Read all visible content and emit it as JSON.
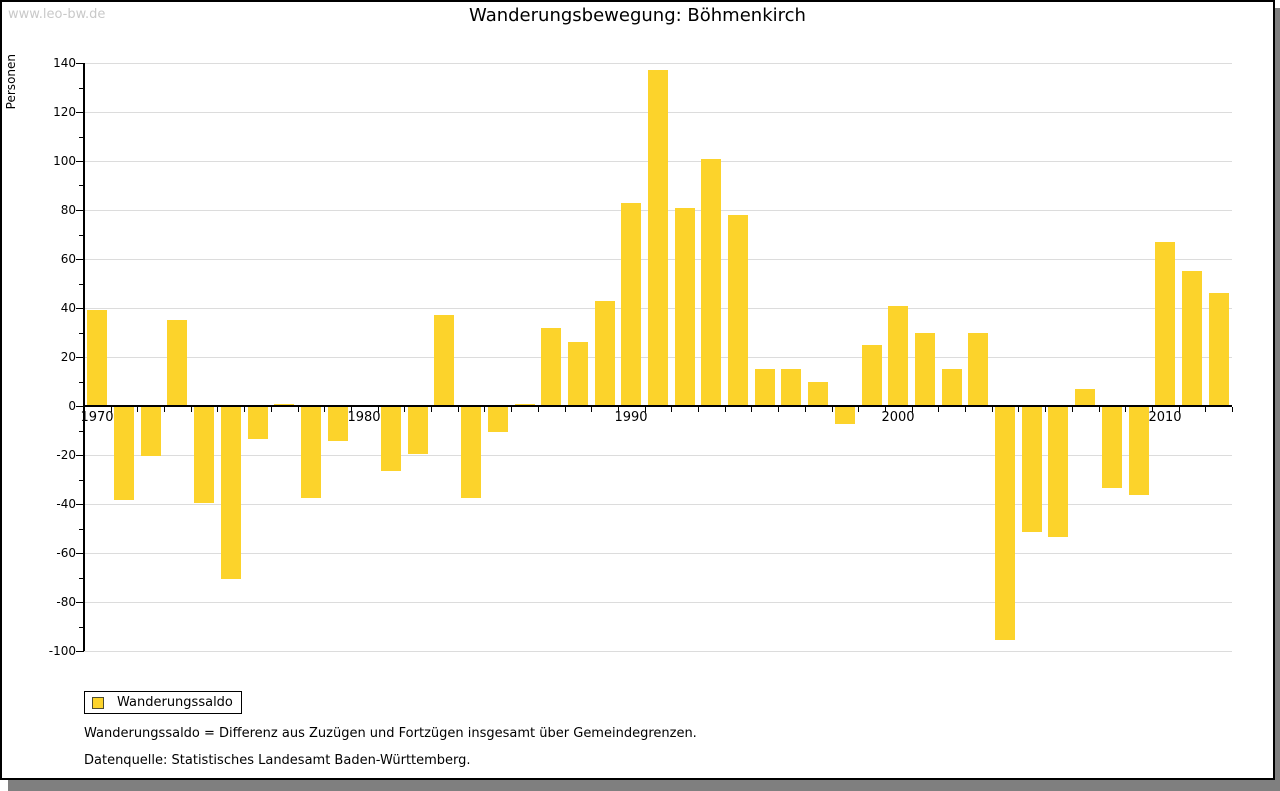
{
  "page": {
    "watermark": "www.leo-bw.de",
    "title": "Wanderungsbewegung: Böhmenkirch"
  },
  "legend": {
    "label": "Wanderungssaldo"
  },
  "footnotes": {
    "definition": "Wanderungssaldo = Differenz aus Zuzügen und Fortzügen insgesamt über Gemeindegrenzen.",
    "source": "Datenquelle: Statistisches Landesamt Baden-Württemberg."
  },
  "colors": {
    "bar": "#fcd32b",
    "gridline": "#dcdcdc",
    "axis": "#000000",
    "watermark": "#c9c9c9",
    "shadow": "#7f7f7f"
  },
  "chart_data": {
    "type": "bar",
    "title": "Wanderungsbewegung: Böhmenkirch",
    "ylabel": "Personen",
    "series_name": "Wanderungssaldo",
    "ylim": [
      -100,
      140
    ],
    "ytick_step": 20,
    "yminor_step": 10,
    "grid": "horizontal",
    "legend_position": "bottom-left",
    "xtick_labels": [
      "1970",
      "1980",
      "1990",
      "2000",
      "2010"
    ],
    "x": [
      1970,
      1971,
      1972,
      1973,
      1974,
      1975,
      1976,
      1977,
      1978,
      1979,
      1980,
      1981,
      1982,
      1983,
      1984,
      1985,
      1986,
      1987,
      1988,
      1989,
      1990,
      1991,
      1992,
      1993,
      1994,
      1995,
      1996,
      1997,
      1998,
      1999,
      2000,
      2001,
      2002,
      2003,
      2004,
      2005,
      2006,
      2007,
      2008,
      2009,
      2010,
      2011,
      2012
    ],
    "values": [
      39,
      -38,
      -20,
      35,
      -39,
      -70,
      -13,
      1,
      -37,
      -14,
      0,
      -26,
      -19,
      37,
      -37,
      -10,
      1,
      32,
      26,
      43,
      83,
      137,
      81,
      101,
      78,
      15,
      15,
      10,
      -7,
      25,
      41,
      30,
      15,
      30,
      -95,
      -51,
      -53,
      7,
      -33,
      -36,
      67,
      55,
      46
    ]
  }
}
